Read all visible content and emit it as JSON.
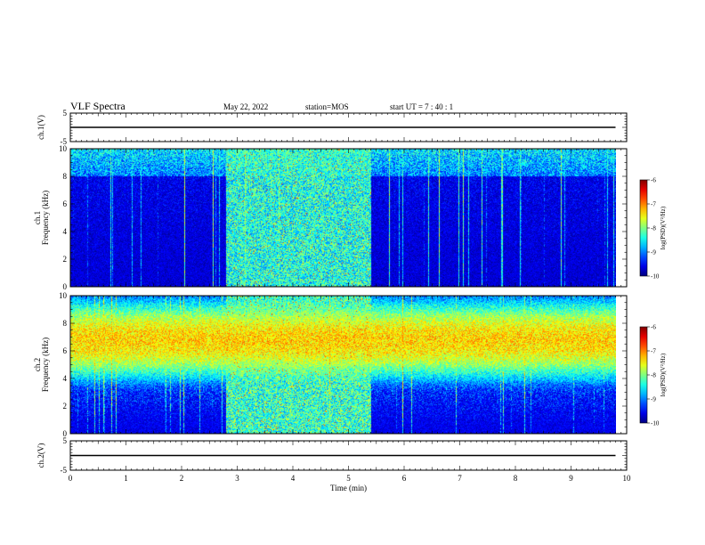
{
  "header": {
    "title": "VLF Spectra",
    "date": "May 22, 2022",
    "station": "station=MOS",
    "start_ut": "start  UT  =   7 : 40 : 1"
  },
  "chart_data": [
    {
      "type": "line",
      "panel": "ch1-waveform",
      "ylabel": "ch.1(V)",
      "ylim": [
        -5,
        5
      ],
      "yticks": [
        "5",
        "-5"
      ],
      "xlim": [
        0,
        10
      ],
      "series": [
        {
          "x": [
            0,
            9.8
          ],
          "values": [
            0,
            0
          ]
        }
      ]
    },
    {
      "type": "heatmap",
      "panel": "ch1-spectrogram",
      "ylabel": "ch.1\nFrequency (kHz)",
      "ylim": [
        0,
        10
      ],
      "yticks": [
        "0",
        "2",
        "4",
        "6",
        "8",
        "10"
      ],
      "xlim": [
        0,
        10
      ],
      "data_end_min": 9.8,
      "colorbar": {
        "label": "log(PSD)(V²/Hz)",
        "range": [
          -10,
          -6
        ],
        "ticks": [
          "-6",
          "-7",
          "-8",
          "-9",
          "-10"
        ]
      },
      "burst_interval_min": [
        2.8,
        5.4
      ],
      "background_level": -9.9,
      "emission_band_khz": [
        8,
        10
      ],
      "emission_level": -8.4,
      "burst_level": -7.7
    },
    {
      "type": "heatmap",
      "panel": "ch2-spectrogram",
      "ylabel": "ch.2\nFrequency (kHz)",
      "ylim": [
        0,
        10
      ],
      "yticks": [
        "0",
        "2",
        "4",
        "6",
        "8",
        "10"
      ],
      "xlim": [
        0,
        10
      ],
      "data_end_min": 9.8,
      "colorbar": {
        "label": "log(PSD)(V²/Hz)",
        "range": [
          -10,
          -6
        ],
        "ticks": [
          "-6",
          "-7",
          "-8",
          "-9",
          "-10"
        ]
      },
      "burst_interval_min": [
        2.8,
        5.4
      ],
      "background_level": -9.8,
      "emission_band_khz": [
        4,
        9.5
      ],
      "emission_peak_khz": 6.8,
      "emission_level": -6.9,
      "burst_level": -7.6
    },
    {
      "type": "line",
      "panel": "ch2-waveform",
      "ylabel": "ch.2(V)",
      "ylim": [
        -5,
        5
      ],
      "yticks": [
        "5",
        "-5"
      ],
      "xlim": [
        0,
        10
      ],
      "xlabel": "Time (min)",
      "xticks": [
        "0",
        "1",
        "2",
        "3",
        "4",
        "5",
        "6",
        "7",
        "8",
        "9",
        "10"
      ],
      "series": [
        {
          "x": [
            0,
            9.8
          ],
          "values": [
            0,
            0
          ]
        }
      ]
    }
  ]
}
